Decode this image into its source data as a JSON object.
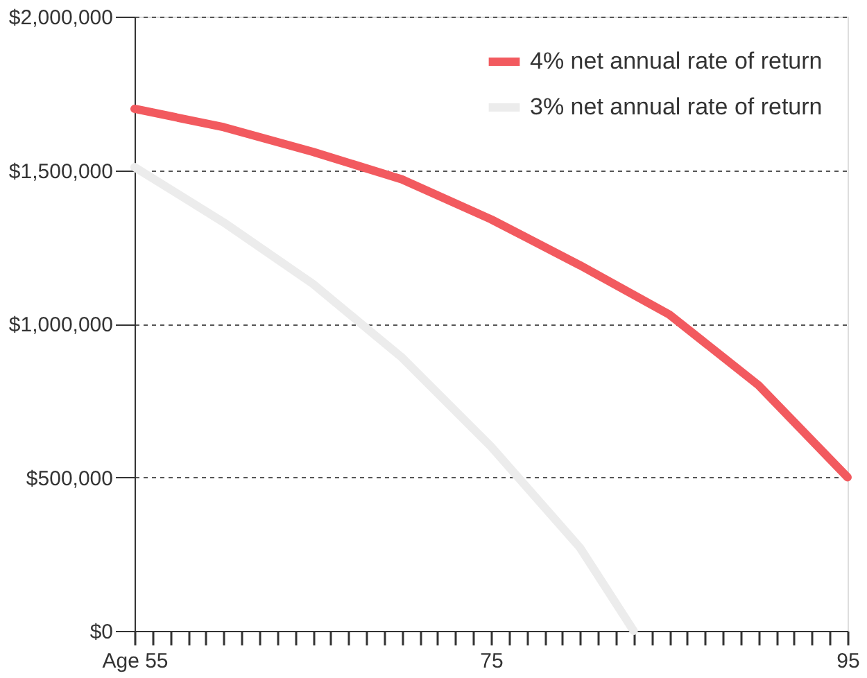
{
  "chart_data": {
    "type": "line",
    "x": [
      55,
      60,
      65,
      70,
      75,
      80,
      85,
      90,
      95
    ],
    "series": [
      {
        "name": "4% net annual rate of return",
        "color": "#f25a5f",
        "values": [
          1700000,
          1640000,
          1560000,
          1470000,
          1340000,
          1190000,
          1030000,
          800000,
          500000
        ]
      },
      {
        "name": "3% net annual rate of return",
        "color": "#ececec",
        "x": [
          55,
          60,
          65,
          70,
          75,
          80,
          83
        ],
        "values": [
          1510000,
          1330000,
          1130000,
          890000,
          600000,
          270000,
          0
        ]
      }
    ],
    "xlim": [
      55,
      95
    ],
    "xticks": [
      {
        "value": 55,
        "label": "Age 55"
      },
      {
        "value": 56,
        "label": null
      },
      {
        "value": 57,
        "label": null
      },
      {
        "value": 58,
        "label": null
      },
      {
        "value": 59,
        "label": null
      },
      {
        "value": 60,
        "label": null
      },
      {
        "value": 61,
        "label": null
      },
      {
        "value": 62,
        "label": null
      },
      {
        "value": 63,
        "label": null
      },
      {
        "value": 64,
        "label": null
      },
      {
        "value": 65,
        "label": null
      },
      {
        "value": 66,
        "label": null
      },
      {
        "value": 67,
        "label": null
      },
      {
        "value": 68,
        "label": null
      },
      {
        "value": 69,
        "label": null
      },
      {
        "value": 70,
        "label": null
      },
      {
        "value": 71,
        "label": null
      },
      {
        "value": 72,
        "label": null
      },
      {
        "value": 73,
        "label": null
      },
      {
        "value": 74,
        "label": null
      },
      75,
      {
        "value": 76,
        "label": null
      },
      {
        "value": 77,
        "label": null
      },
      {
        "value": 78,
        "label": null
      },
      {
        "value": 79,
        "label": null
      },
      {
        "value": 80,
        "label": null
      },
      {
        "value": 81,
        "label": null
      },
      {
        "value": 82,
        "label": null
      },
      {
        "value": 83,
        "label": null
      },
      {
        "value": 84,
        "label": null
      },
      {
        "value": 85,
        "label": null
      },
      {
        "value": 86,
        "label": null
      },
      {
        "value": 87,
        "label": null
      },
      {
        "value": 88,
        "label": null
      },
      {
        "value": 89,
        "label": null
      },
      {
        "value": 90,
        "label": null
      },
      {
        "value": 91,
        "label": null
      },
      {
        "value": 92,
        "label": null
      },
      {
        "value": 93,
        "label": null
      },
      {
        "value": 94,
        "label": null
      },
      95
    ],
    "ylim": [
      0,
      2000000
    ],
    "yticks": [
      {
        "value": 0,
        "label": "$0"
      },
      {
        "value": 500000,
        "label": "$500,000"
      },
      {
        "value": 1000000,
        "label": "$1,000,000"
      },
      {
        "value": 1500000,
        "label": "$1,500,000"
      },
      {
        "value": 2000000,
        "label": "$2,000,000"
      }
    ],
    "grid": "y",
    "legend": "top right",
    "line_style": "solid",
    "marker": "none"
  }
}
